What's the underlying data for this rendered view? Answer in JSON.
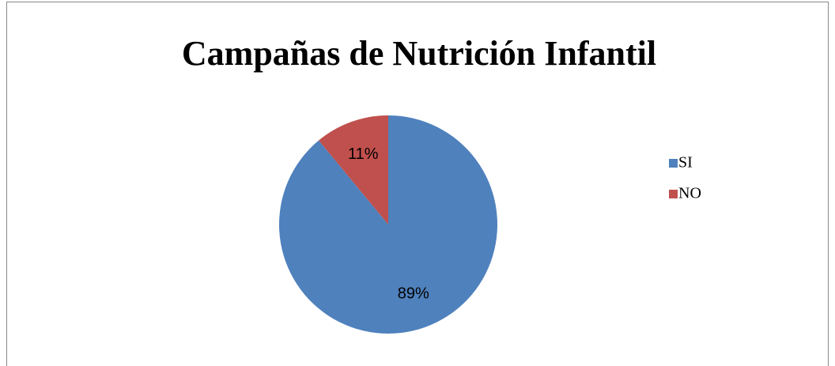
{
  "chart_data": {
    "type": "pie",
    "title": "Campañas de Nutrición Infantil",
    "categories": [
      "SI",
      "NO"
    ],
    "values": [
      89,
      11
    ],
    "value_labels": [
      "89%",
      "11%"
    ],
    "colors": [
      "#4f81bd",
      "#c0504d"
    ],
    "legend": "right"
  }
}
